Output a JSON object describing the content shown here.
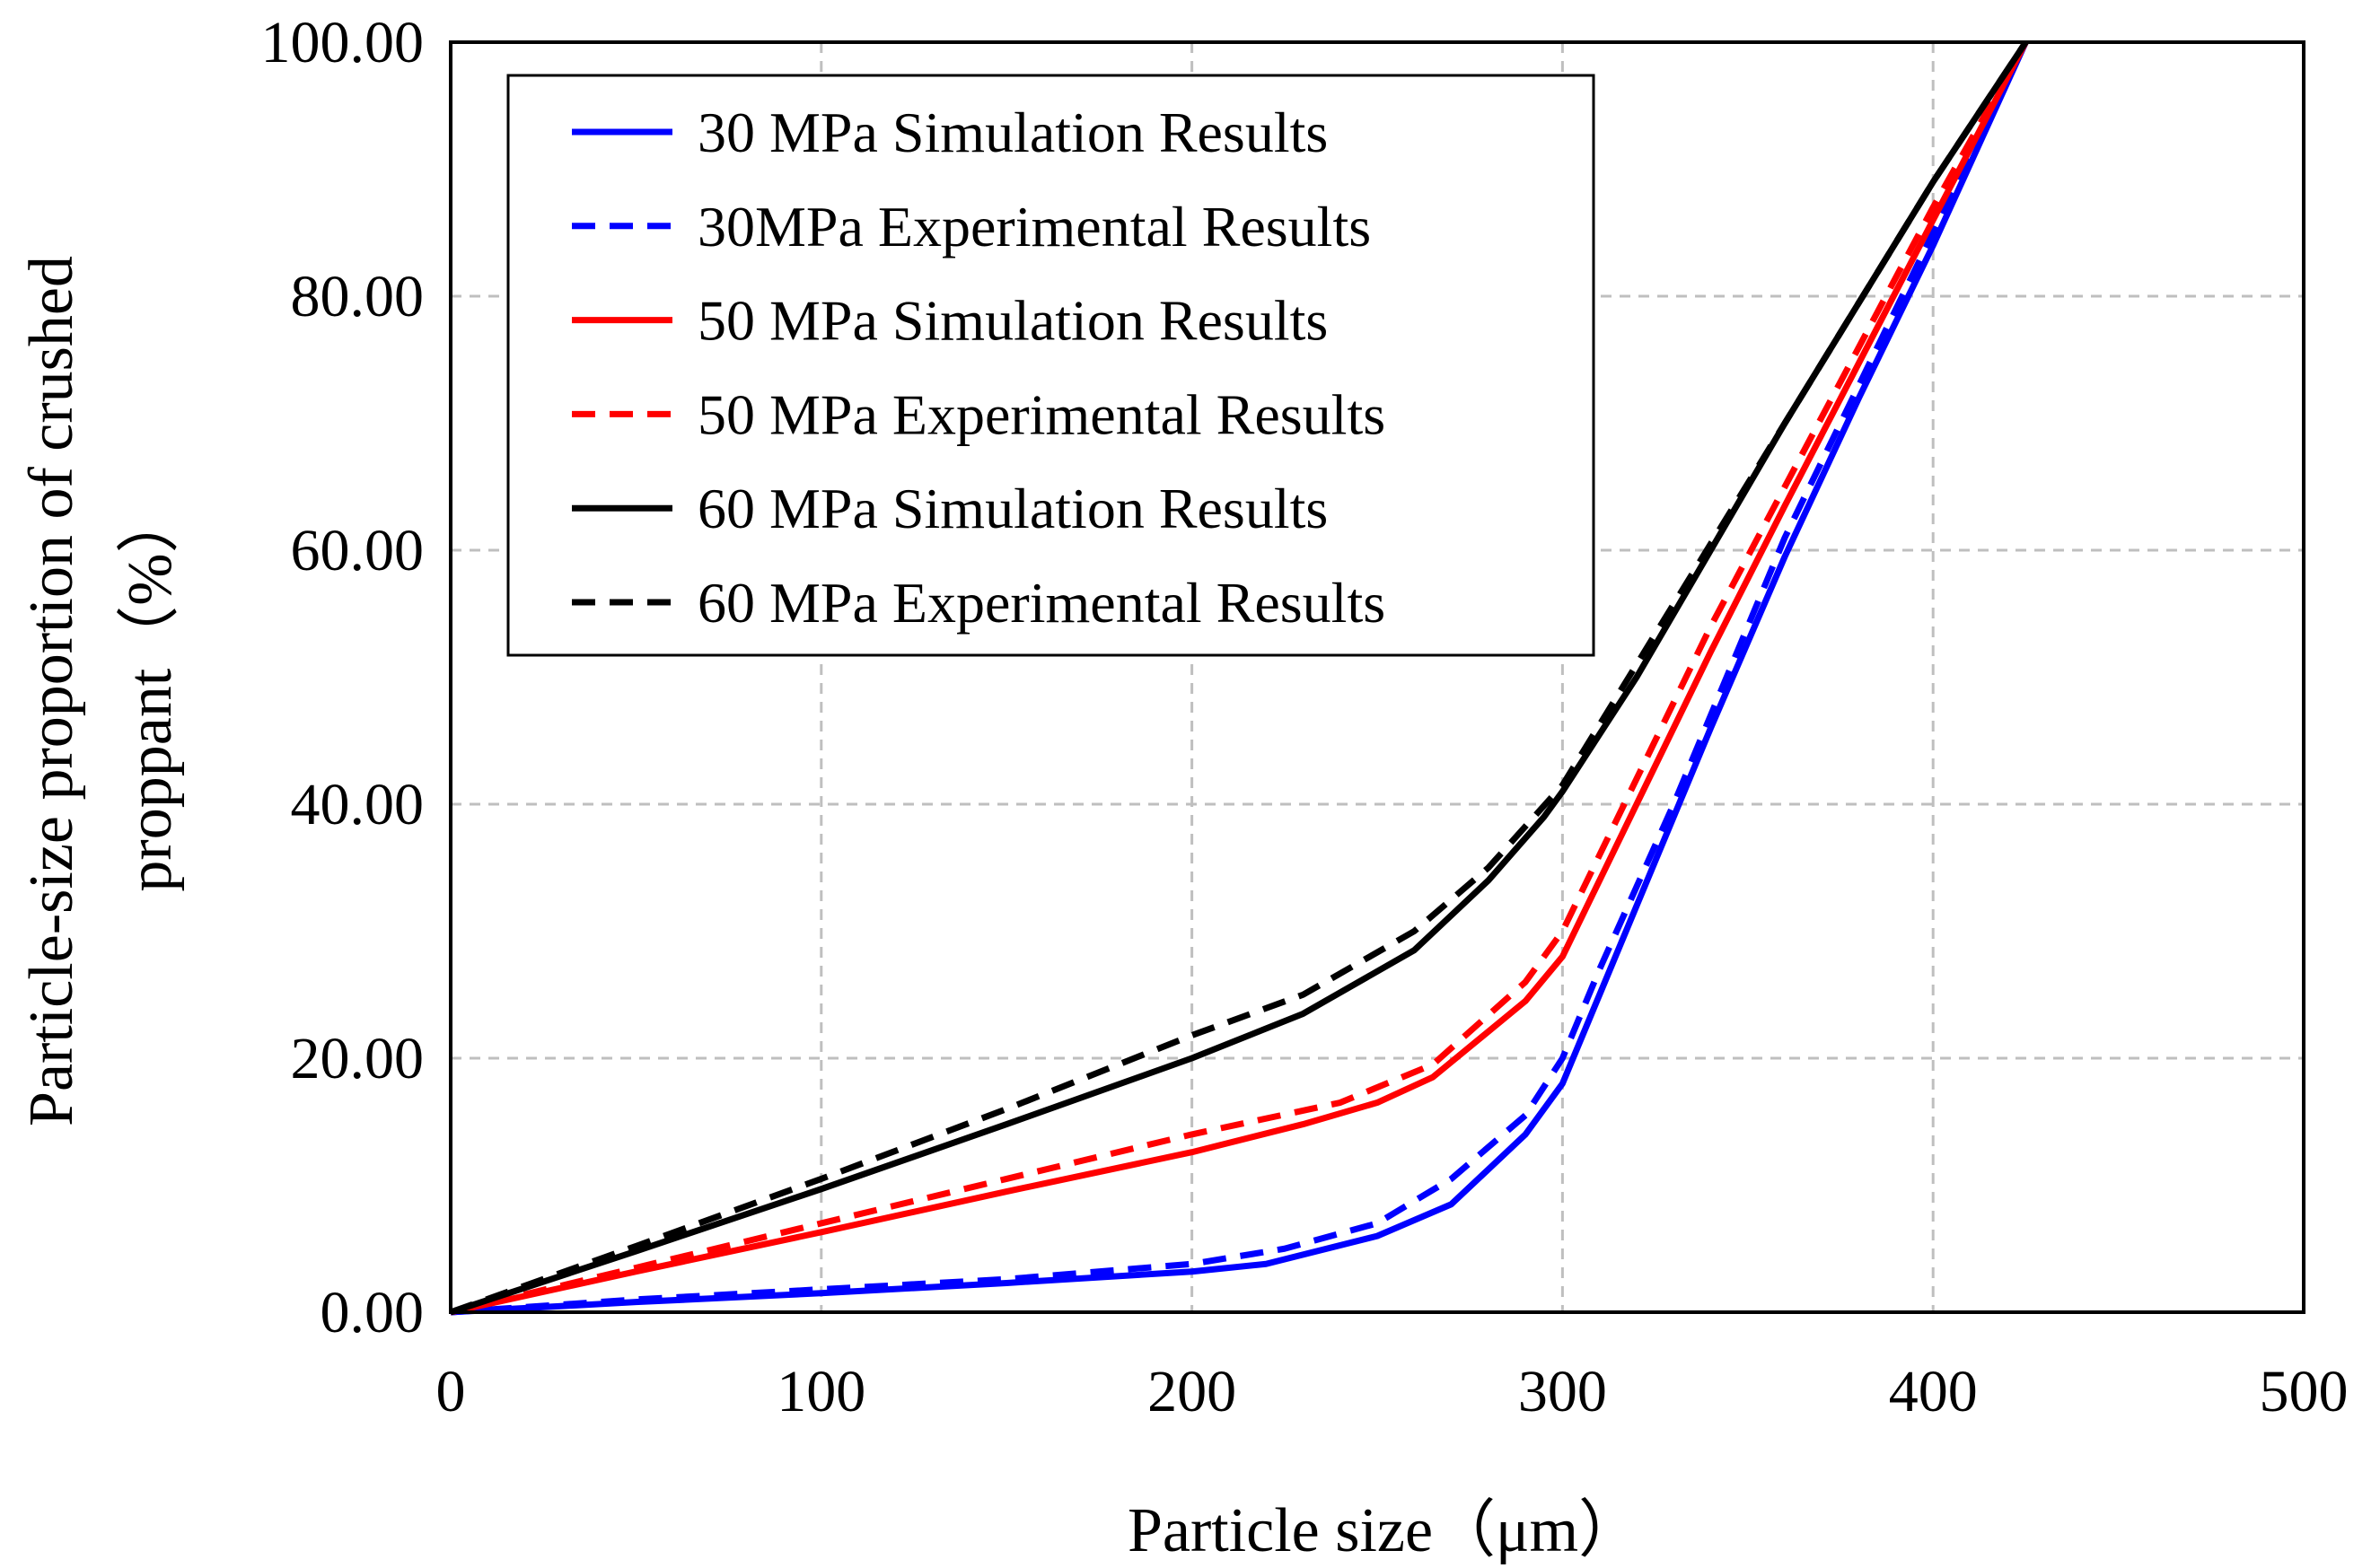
{
  "chart_data": {
    "type": "line",
    "title": "",
    "xlabel": "Particle size（μm）",
    "ylabel_lines": [
      "Particle-size proportion of crushed",
      "proppant（%）"
    ],
    "xlim": [
      0,
      500
    ],
    "ylim": [
      0,
      100
    ],
    "xticks": [
      0,
      100,
      200,
      300,
      400,
      500
    ],
    "xtick_labels": [
      "0",
      "100",
      "200",
      "300",
      "400",
      "500"
    ],
    "yticks": [
      0,
      20,
      40,
      60,
      80,
      100
    ],
    "ytick_labels": [
      "0.00",
      "20.00",
      "40.00",
      "60.00",
      "80.00",
      "100.00"
    ],
    "grid": true,
    "legend_position": "top-left",
    "series": [
      {
        "name": "30 MPa Simulation Results",
        "color": "#0000ff",
        "dashed": false,
        "x": [
          0,
          50,
          100,
          150,
          200,
          220,
          250,
          270,
          290,
          300,
          310,
          320,
          340,
          360,
          380,
          400,
          425
        ],
        "y": [
          0,
          0.8,
          1.5,
          2.3,
          3.2,
          3.8,
          6,
          8.5,
          14,
          18,
          25,
          32,
          46,
          59.5,
          72,
          84,
          100
        ]
      },
      {
        "name": "30MPa Experimental Results",
        "color": "#0000ff",
        "dashed": true,
        "x": [
          0,
          50,
          100,
          150,
          200,
          225,
          250,
          270,
          290,
          300,
          310,
          330,
          360,
          400,
          425
        ],
        "y": [
          0,
          1,
          1.8,
          2.6,
          3.8,
          5,
          7,
          10.5,
          15.5,
          20,
          27,
          40,
          61,
          85,
          100
        ]
      },
      {
        "name": "50 MPa Simulation Results",
        "color": "#ff0000",
        "dashed": false,
        "x": [
          0,
          50,
          100,
          150,
          200,
          230,
          250,
          265,
          290,
          300,
          320,
          340,
          360,
          400,
          425
        ],
        "y": [
          0,
          3.2,
          6.3,
          9.5,
          12.6,
          14.8,
          16.5,
          18.5,
          24.5,
          28,
          40,
          52,
          63.5,
          86,
          100
        ]
      },
      {
        "name": "50 MPa Experimental Results",
        "color": "#ff0000",
        "dashed": true,
        "x": [
          0,
          50,
          100,
          150,
          200,
          240,
          265,
          290,
          300,
          320,
          340,
          360,
          400,
          425
        ],
        "y": [
          0,
          3.5,
          7,
          10.5,
          14,
          16.5,
          19.5,
          26,
          30,
          42,
          54,
          65,
          87,
          100
        ]
      },
      {
        "name": "60 MPa Simulation Results",
        "color": "#000000",
        "dashed": false,
        "x": [
          0,
          50,
          100,
          150,
          200,
          230,
          260,
          280,
          295,
          300,
          320,
          340,
          360,
          400,
          425
        ],
        "y": [
          0,
          4.8,
          9.7,
          14.8,
          20,
          23.5,
          28.5,
          34,
          39,
          41,
          50,
          60,
          70,
          89,
          100
        ]
      },
      {
        "name": "60 MPa Experimental Results",
        "color": "#000000",
        "dashed": true,
        "x": [
          0,
          50,
          100,
          150,
          200,
          230,
          260,
          280,
          300,
          320,
          360,
          400,
          425
        ],
        "y": [
          0,
          5.2,
          10.5,
          16,
          21.8,
          25,
          30,
          35,
          41.5,
          51,
          70,
          89,
          100
        ]
      }
    ]
  }
}
